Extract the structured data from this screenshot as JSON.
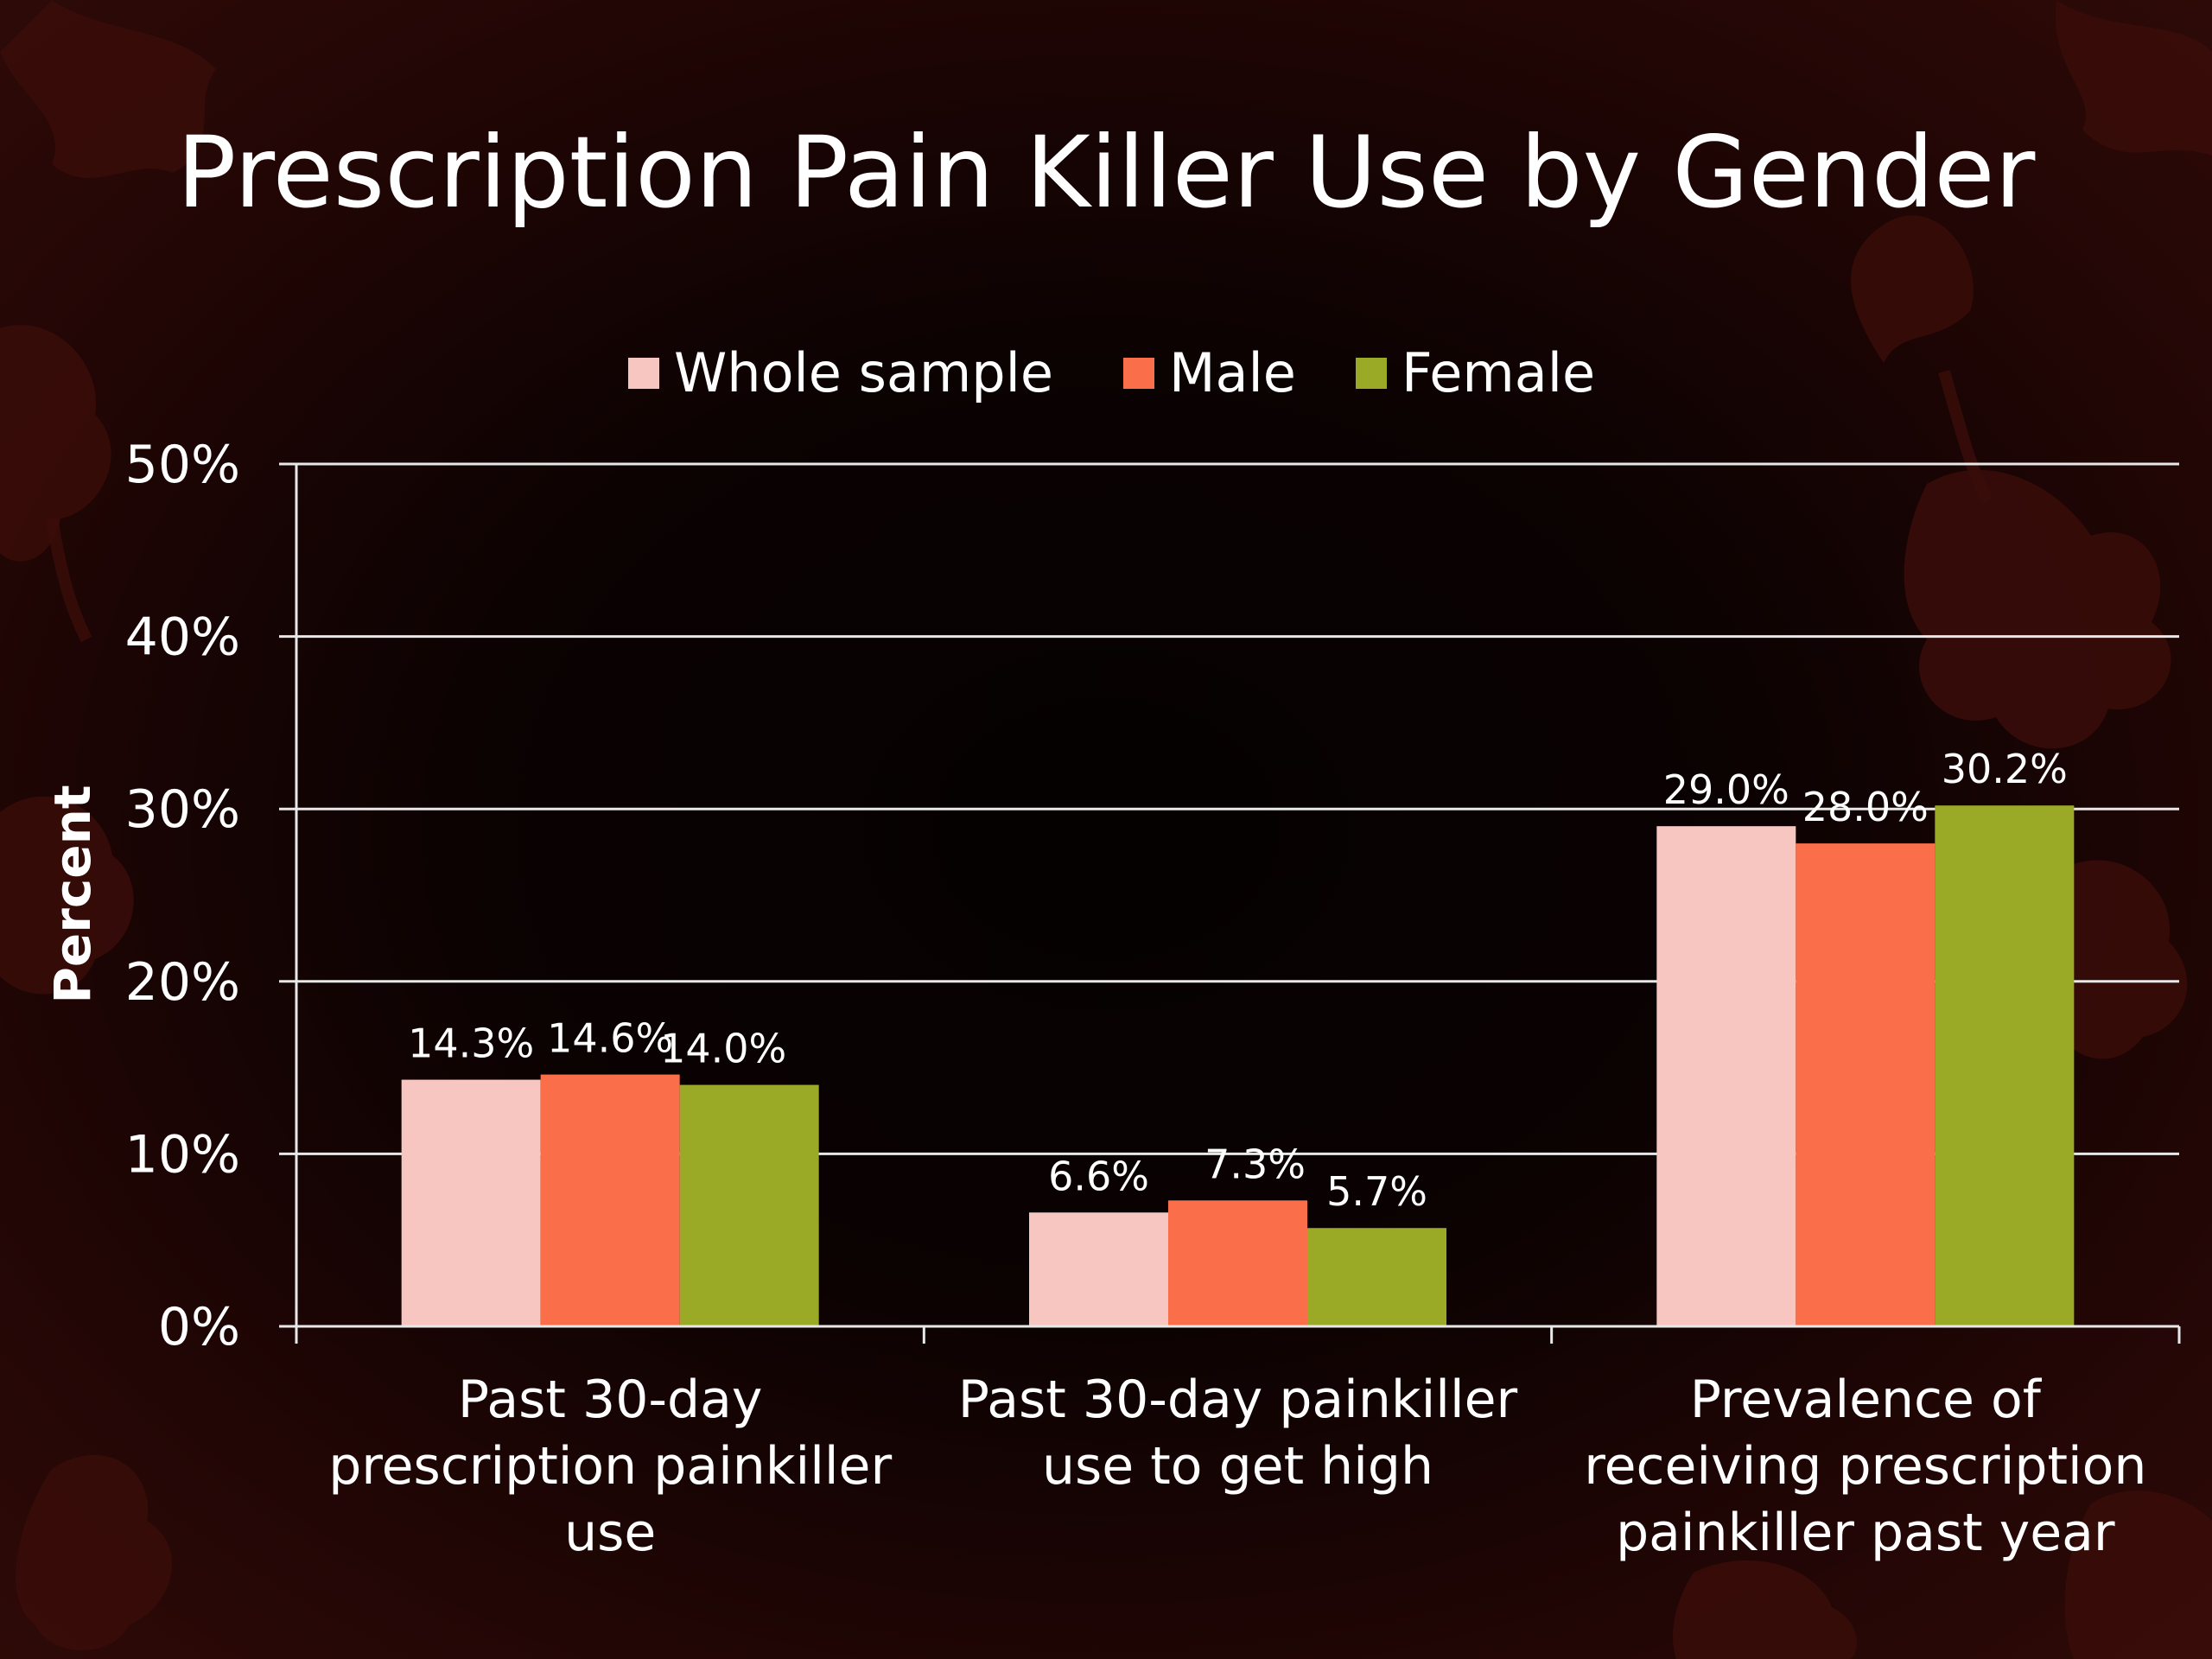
{
  "slide": {
    "title": "Prescription Pain Killer Use by Gender"
  },
  "colors": {
    "whole_sample": "#f7c6c0",
    "male": "#fa6f4a",
    "female": "#9aaa27",
    "gridline": "#e8e8e8",
    "text": "#ffffff"
  },
  "chart_data": {
    "type": "bar",
    "title": "Prescription Pain Killer Use by Gender",
    "ylabel": "Percent",
    "xlabel": "",
    "ylim": [
      0,
      50
    ],
    "yticks": [
      0,
      10,
      20,
      30,
      40,
      50
    ],
    "ytick_labels": [
      "0%",
      "10%",
      "20%",
      "30%",
      "40%",
      "50%"
    ],
    "grid": true,
    "legend_position": "top-center",
    "categories": [
      [
        "Past 30-day",
        "prescription painkiller",
        "use"
      ],
      [
        "Past 30-day painkiller",
        "use to get high"
      ],
      [
        "Prevalence of",
        "receiving prescription",
        "painkiller past year"
      ]
    ],
    "series": [
      {
        "name": "Whole sample",
        "color": "#f7c6c0",
        "values": [
          14.3,
          6.6,
          29.0
        ],
        "labels": [
          "14.3%",
          "6.6%",
          "29.0%"
        ]
      },
      {
        "name": "Male",
        "color": "#fa6f4a",
        "values": [
          14.6,
          7.3,
          28.0
        ],
        "labels": [
          "14.6%",
          "7.3%",
          "28.0%"
        ]
      },
      {
        "name": "Female",
        "color": "#9aaa27",
        "values": [
          14.0,
          5.7,
          30.2
        ],
        "labels": [
          "14.0%",
          "5.7%",
          "30.2%"
        ]
      }
    ]
  }
}
